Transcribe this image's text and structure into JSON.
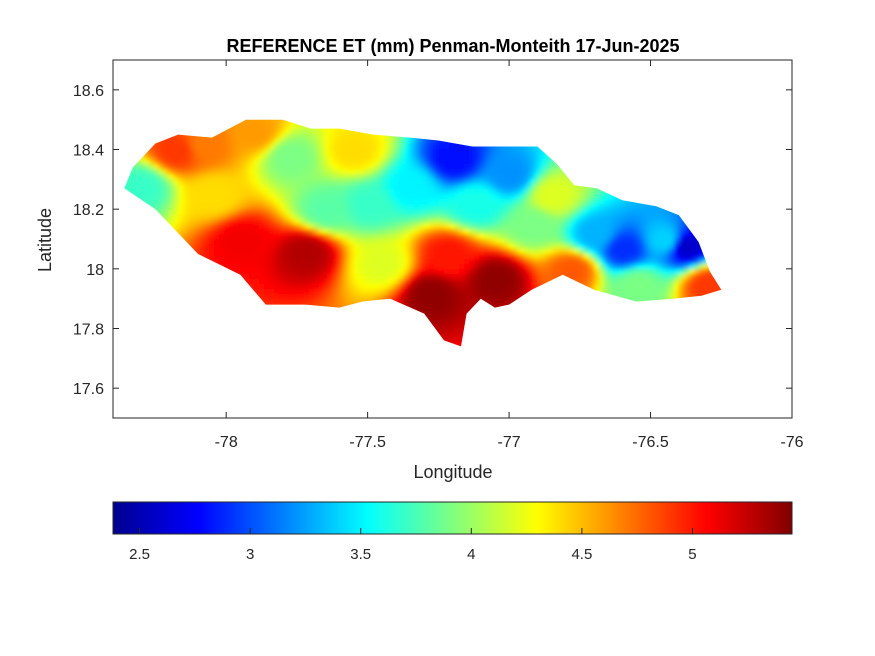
{
  "chart_data": {
    "type": "heatmap",
    "title": "REFERENCE ET (mm) Penman-Monteith 17-Jun-2025",
    "xlabel": "Longitude",
    "ylabel": "Latitude",
    "xlim": [
      -78.4,
      -76.0
    ],
    "ylim": [
      17.5,
      18.7
    ],
    "xticks": [
      -78,
      -77.5,
      -77,
      -76.5,
      -76
    ],
    "yticks": [
      17.6,
      17.8,
      18,
      18.2,
      18.4,
      18.6
    ],
    "grid": false,
    "colormap": "jet",
    "colorbar": {
      "location": "bottom",
      "range": [
        2.38,
        5.45
      ],
      "ticks": [
        2.5,
        3,
        3.5,
        4,
        4.5,
        5
      ]
    },
    "region_outline_lonlat": [
      [
        -78.36,
        18.27
      ],
      [
        -78.33,
        18.34
      ],
      [
        -78.25,
        18.42
      ],
      [
        -78.17,
        18.45
      ],
      [
        -78.05,
        18.44
      ],
      [
        -77.93,
        18.5
      ],
      [
        -77.8,
        18.5
      ],
      [
        -77.7,
        18.47
      ],
      [
        -77.6,
        18.47
      ],
      [
        -77.48,
        18.45
      ],
      [
        -77.35,
        18.44
      ],
      [
        -77.25,
        18.43
      ],
      [
        -77.13,
        18.41
      ],
      [
        -77.0,
        18.41
      ],
      [
        -76.9,
        18.41
      ],
      [
        -76.83,
        18.35
      ],
      [
        -76.77,
        18.28
      ],
      [
        -76.69,
        18.27
      ],
      [
        -76.6,
        18.23
      ],
      [
        -76.48,
        18.21
      ],
      [
        -76.4,
        18.18
      ],
      [
        -76.33,
        18.09
      ],
      [
        -76.29,
        17.99
      ],
      [
        -76.25,
        17.93
      ],
      [
        -76.32,
        17.91
      ],
      [
        -76.42,
        17.9
      ],
      [
        -76.55,
        17.89
      ],
      [
        -76.7,
        17.93
      ],
      [
        -76.81,
        17.98
      ],
      [
        -76.92,
        17.93
      ],
      [
        -77.0,
        17.88
      ],
      [
        -77.05,
        17.87
      ],
      [
        -77.1,
        17.9
      ],
      [
        -77.15,
        17.85
      ],
      [
        -77.17,
        17.74
      ],
      [
        -77.23,
        17.76
      ],
      [
        -77.3,
        17.85
      ],
      [
        -77.42,
        17.9
      ],
      [
        -77.52,
        17.89
      ],
      [
        -77.6,
        17.87
      ],
      [
        -77.72,
        17.88
      ],
      [
        -77.86,
        17.88
      ],
      [
        -77.95,
        17.98
      ],
      [
        -78.1,
        18.05
      ],
      [
        -78.2,
        18.15
      ],
      [
        -78.25,
        18.2
      ],
      [
        -78.36,
        18.27
      ]
    ],
    "et_field_samples": [
      {
        "lon": -78.3,
        "lat": 18.28,
        "et": 3.7
      },
      {
        "lon": -78.18,
        "lat": 18.4,
        "et": 4.9
      },
      {
        "lon": -78.08,
        "lat": 18.42,
        "et": 4.7
      },
      {
        "lon": -78.05,
        "lat": 18.25,
        "et": 4.4
      },
      {
        "lon": -77.95,
        "lat": 18.1,
        "et": 5.1
      },
      {
        "lon": -77.9,
        "lat": 18.46,
        "et": 4.6
      },
      {
        "lon": -77.78,
        "lat": 18.38,
        "et": 3.9
      },
      {
        "lon": -77.72,
        "lat": 18.06,
        "et": 5.3
      },
      {
        "lon": -77.65,
        "lat": 18.2,
        "et": 3.8
      },
      {
        "lon": -77.55,
        "lat": 18.4,
        "et": 4.4
      },
      {
        "lon": -77.5,
        "lat": 18.22,
        "et": 3.7
      },
      {
        "lon": -77.45,
        "lat": 18.02,
        "et": 4.2
      },
      {
        "lon": -77.35,
        "lat": 18.28,
        "et": 3.5
      },
      {
        "lon": -77.28,
        "lat": 17.92,
        "et": 5.4
      },
      {
        "lon": -77.22,
        "lat": 18.05,
        "et": 5.0
      },
      {
        "lon": -77.2,
        "lat": 18.37,
        "et": 2.8
      },
      {
        "lon": -77.12,
        "lat": 18.22,
        "et": 3.6
      },
      {
        "lon": -77.05,
        "lat": 17.97,
        "et": 5.4
      },
      {
        "lon": -77.0,
        "lat": 18.32,
        "et": 3.2
      },
      {
        "lon": -76.92,
        "lat": 18.15,
        "et": 3.9
      },
      {
        "lon": -76.85,
        "lat": 18.25,
        "et": 4.2
      },
      {
        "lon": -76.78,
        "lat": 18.0,
        "et": 4.8
      },
      {
        "lon": -76.7,
        "lat": 18.12,
        "et": 3.3
      },
      {
        "lon": -76.6,
        "lat": 18.07,
        "et": 2.9
      },
      {
        "lon": -76.55,
        "lat": 17.95,
        "et": 3.9
      },
      {
        "lon": -76.45,
        "lat": 18.1,
        "et": 3.4
      },
      {
        "lon": -76.38,
        "lat": 18.08,
        "et": 2.6
      },
      {
        "lon": -76.3,
        "lat": 17.95,
        "et": 4.9
      }
    ]
  }
}
